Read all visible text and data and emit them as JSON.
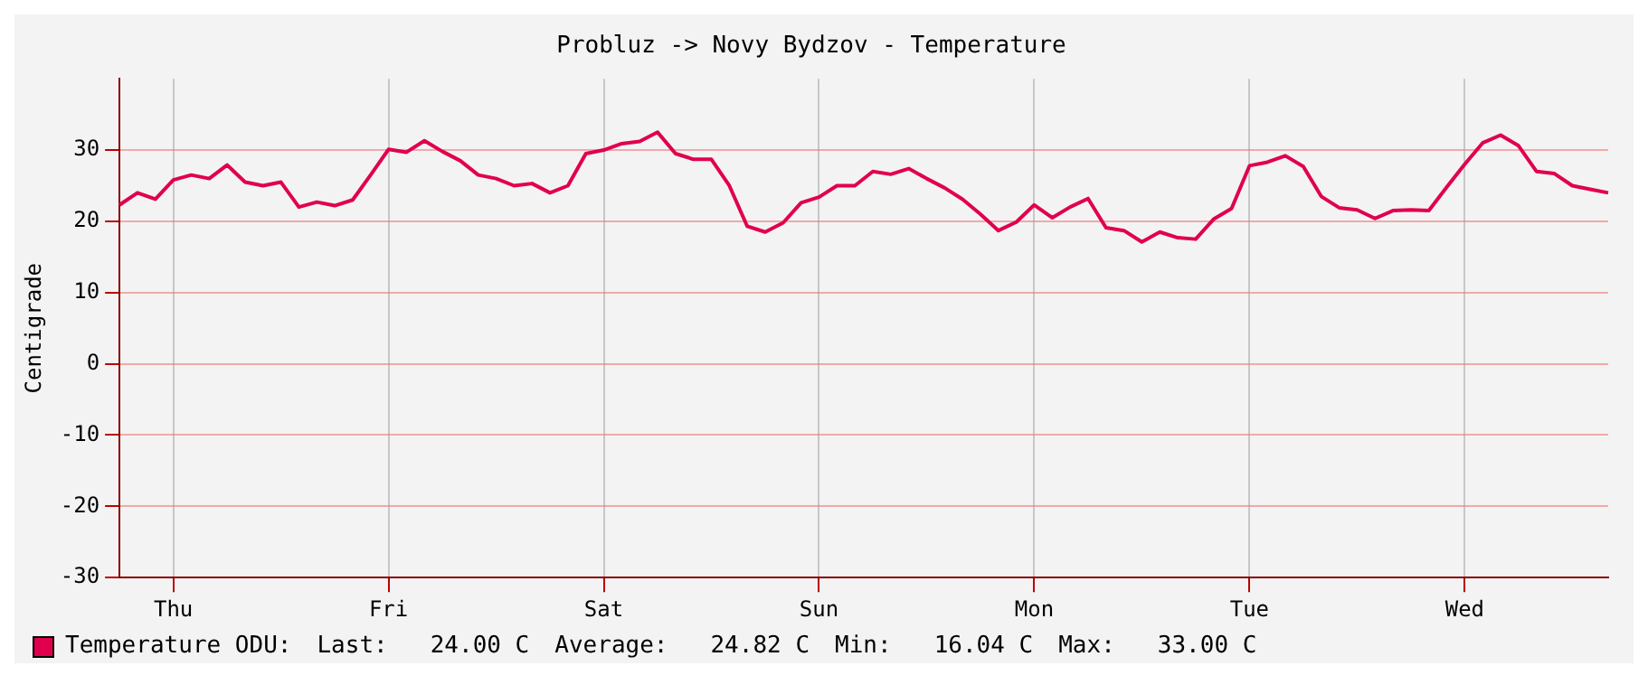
{
  "chart_data": {
    "type": "line",
    "title": "Probluz -> Novy Bydzov - Temperature",
    "ylabel": "Centigrade",
    "categories": [
      null,
      null,
      null,
      "Thu",
      null,
      null,
      null,
      null,
      null,
      null,
      null,
      null,
      null,
      null,
      null,
      "Fri",
      null,
      null,
      null,
      null,
      null,
      null,
      null,
      null,
      null,
      null,
      null,
      "Sat",
      null,
      null,
      null,
      null,
      null,
      null,
      null,
      null,
      null,
      null,
      null,
      "Sun",
      null,
      null,
      null,
      null,
      null,
      null,
      null,
      null,
      null,
      null,
      null,
      "Mon",
      null,
      null,
      null,
      null,
      null,
      null,
      null,
      null,
      null,
      null,
      null,
      "Tue",
      null,
      null,
      null,
      null,
      null,
      null,
      null,
      null,
      null,
      null,
      null,
      "Wed",
      null,
      null,
      null,
      null,
      null,
      null,
      null,
      null
    ],
    "series": [
      {
        "name": "Temperature ODU:",
        "color": "#e0004e",
        "values": [
          22.3,
          24.0,
          23.1,
          25.8,
          26.5,
          26.0,
          27.9,
          25.5,
          25.0,
          25.5,
          22.0,
          22.7,
          22.2,
          23.0,
          26.5,
          30.1,
          29.7,
          31.3,
          29.8,
          28.5,
          26.5,
          26.0,
          25.0,
          25.3,
          24.0,
          25.0,
          29.5,
          30.0,
          30.9,
          31.2,
          32.5,
          29.5,
          28.7,
          28.7,
          25.0,
          19.3,
          18.5,
          19.8,
          22.6,
          23.4,
          25.0,
          25.0,
          27.0,
          26.6,
          27.4,
          26.0,
          24.7,
          23.1,
          21.0,
          18.7,
          19.9,
          22.3,
          20.5,
          22.0,
          23.2,
          19.1,
          18.7,
          17.1,
          18.5,
          17.7,
          17.5,
          20.3,
          21.8,
          27.8,
          28.3,
          29.2,
          27.7,
          23.5,
          21.9,
          21.6,
          20.4,
          21.5,
          21.6,
          21.5,
          24.8,
          28.0,
          31.0,
          32.1,
          30.6,
          27.0,
          26.7,
          25.0,
          24.5,
          24.0
        ]
      }
    ],
    "ylim": [
      -30,
      40
    ],
    "yticks": [
      -30,
      -20,
      -10,
      0,
      10,
      20,
      30
    ],
    "grid": true,
    "legend": "bottom",
    "marker": "none",
    "line_style": "solid",
    "annotations": [
      "Last:   24.00 C",
      "Average:   24.82 C",
      "Min:   16.04 C",
      "Max:   33.00 C"
    ]
  }
}
